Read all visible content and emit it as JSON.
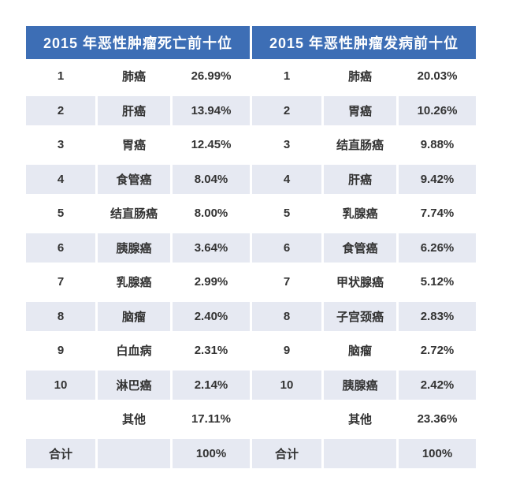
{
  "colors": {
    "header_bg": "#3d6eb5",
    "header_text": "#ffffff",
    "row_alt_bg": "#e6e9f2",
    "text": "#333333",
    "page_bg": "#ffffff"
  },
  "chart_data": [
    {
      "type": "table",
      "title": "2015 年恶性肿瘤死亡前十位",
      "rows": [
        {
          "rank": "1",
          "name": "肺癌",
          "pct": "26.99%"
        },
        {
          "rank": "2",
          "name": "肝癌",
          "pct": "13.94%"
        },
        {
          "rank": "3",
          "name": "胃癌",
          "pct": "12.45%"
        },
        {
          "rank": "4",
          "name": "食管癌",
          "pct": "8.04%"
        },
        {
          "rank": "5",
          "name": "结直肠癌",
          "pct": "8.00%"
        },
        {
          "rank": "6",
          "name": "胰腺癌",
          "pct": "3.64%"
        },
        {
          "rank": "7",
          "name": "乳腺癌",
          "pct": "2.99%"
        },
        {
          "rank": "8",
          "name": "脑瘤",
          "pct": "2.40%"
        },
        {
          "rank": "9",
          "name": "白血病",
          "pct": "2.31%"
        },
        {
          "rank": "10",
          "name": "淋巴癌",
          "pct": "2.14%"
        },
        {
          "rank": "",
          "name": "其他",
          "pct": "17.11%"
        },
        {
          "rank": "合计",
          "name": "",
          "pct": "100%"
        }
      ]
    },
    {
      "type": "table",
      "title": "2015 年恶性肿瘤发病前十位",
      "rows": [
        {
          "rank": "1",
          "name": "肺癌",
          "pct": "20.03%"
        },
        {
          "rank": "2",
          "name": "胃癌",
          "pct": "10.26%"
        },
        {
          "rank": "3",
          "name": "结直肠癌",
          "pct": "9.88%"
        },
        {
          "rank": "4",
          "name": "肝癌",
          "pct": "9.42%"
        },
        {
          "rank": "5",
          "name": "乳腺癌",
          "pct": "7.74%"
        },
        {
          "rank": "6",
          "name": "食管癌",
          "pct": "6.26%"
        },
        {
          "rank": "7",
          "name": "甲状腺癌",
          "pct": "5.12%"
        },
        {
          "rank": "8",
          "name": "子宫颈癌",
          "pct": "2.83%"
        },
        {
          "rank": "9",
          "name": "脑瘤",
          "pct": "2.72%"
        },
        {
          "rank": "10",
          "name": "胰腺癌",
          "pct": "2.42%"
        },
        {
          "rank": "",
          "name": "其他",
          "pct": "23.36%"
        },
        {
          "rank": "合计",
          "name": "",
          "pct": "100%"
        }
      ]
    }
  ]
}
